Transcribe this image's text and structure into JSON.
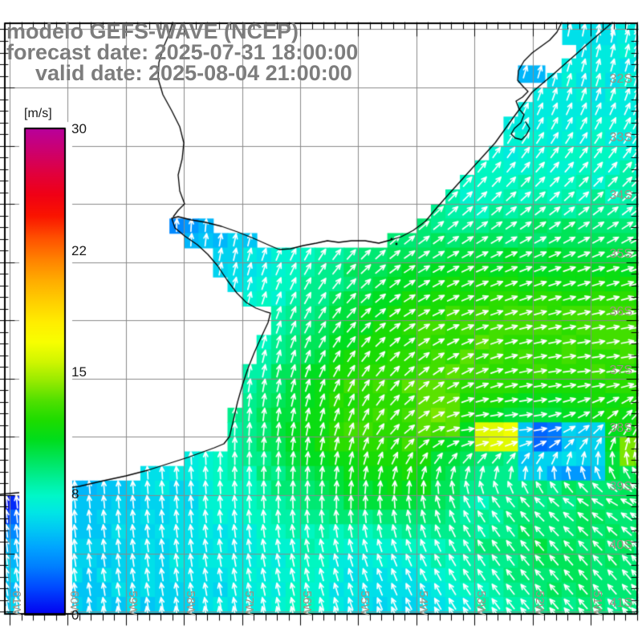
{
  "header": {
    "model_title": "modelo GEFS-WAVE (NCEP)",
    "forecast_date_line": "forecast date: 2025-07-31 18:00:00",
    "valid_date_line": "valid date: 2025-08-04 21:00:00",
    "title_color": "#7d7d7d"
  },
  "colorbar": {
    "unit_label": "[m/s]",
    "ticks": [
      {
        "value": 30,
        "label": "30"
      },
      {
        "value": 22,
        "label": "22"
      },
      {
        "value": 15,
        "label": "15"
      },
      {
        "value": 8,
        "label": "8"
      },
      {
        "value": 0,
        "label": "0"
      }
    ],
    "colormap": [
      [
        0.0,
        "#b8009c"
      ],
      [
        0.045,
        "#cc0070"
      ],
      [
        0.09,
        "#e00040"
      ],
      [
        0.135,
        "#f00016"
      ],
      [
        0.18,
        "#fa1400"
      ],
      [
        0.225,
        "#ff5000"
      ],
      [
        0.27,
        "#ff8200"
      ],
      [
        0.315,
        "#ffae00"
      ],
      [
        0.36,
        "#ffd200"
      ],
      [
        0.4,
        "#ffee00"
      ],
      [
        0.44,
        "#f8ff00"
      ],
      [
        0.48,
        "#d0f600"
      ],
      [
        0.52,
        "#96ea00"
      ],
      [
        0.56,
        "#50e000"
      ],
      [
        0.6,
        "#1edc00"
      ],
      [
        0.64,
        "#00dd1c"
      ],
      [
        0.68,
        "#00e55a"
      ],
      [
        0.72,
        "#00ef96"
      ],
      [
        0.755,
        "#00f8c8"
      ],
      [
        0.79,
        "#00e6e6"
      ],
      [
        0.825,
        "#00c8f4"
      ],
      [
        0.86,
        "#00a6ff"
      ],
      [
        0.9,
        "#0080ff"
      ],
      [
        0.945,
        "#0048ff"
      ],
      [
        1.0,
        "#0400f0"
      ]
    ]
  },
  "axes": {
    "label_color": "#9c9183",
    "grid_color": "#8a8a8a",
    "lat_labels": [
      {
        "lat": -32,
        "text": "32S"
      },
      {
        "lat": -33,
        "text": "33S"
      },
      {
        "lat": -34,
        "text": "34S"
      },
      {
        "lat": -35,
        "text": "35S"
      },
      {
        "lat": -36,
        "text": "36S"
      },
      {
        "lat": -37,
        "text": "37S"
      },
      {
        "lat": -38,
        "text": "38S"
      },
      {
        "lat": -39,
        "text": "39S"
      },
      {
        "lat": -40,
        "text": "40S"
      },
      {
        "lat": -41,
        "text": "41S"
      }
    ],
    "lon_labels": [
      {
        "lon": -61,
        "text": "61W"
      },
      {
        "lon": -60,
        "text": "60W"
      },
      {
        "lon": -59,
        "text": "59W"
      },
      {
        "lon": -58,
        "text": "58W"
      },
      {
        "lon": -57,
        "text": "57W"
      },
      {
        "lon": -56,
        "text": "56W"
      },
      {
        "lon": -55,
        "text": "55W"
      },
      {
        "lon": -54,
        "text": "54W"
      },
      {
        "lon": -53,
        "text": "53W"
      },
      {
        "lon": -52,
        "text": "52W"
      },
      {
        "lon": -51,
        "text": "51W"
      }
    ]
  },
  "chart_data": {
    "type": "heatmap",
    "title": "modelo GEFS-WAVE (NCEP)",
    "field_description": "wind/wave speed [m/s] shaded cells with white direction arrows",
    "lon_range": [
      -61.1,
      -50.18
    ],
    "lat_range": [
      -41.05,
      -30.88
    ],
    "value_range": [
      0,
      30
    ],
    "grid_lons": [
      -61,
      -60,
      -59,
      -58,
      -57,
      -56,
      -55,
      -54,
      -53,
      -52,
      -51,
      -50
    ],
    "grid_lats": [
      -31,
      -32,
      -33,
      -34,
      -35,
      -36,
      -37,
      -38,
      -39,
      -40,
      -41
    ],
    "speed_grid": [
      [
        0,
        0,
        0,
        0,
        0,
        0,
        0,
        6.5,
        6.5,
        6.5,
        7,
        7
      ],
      [
        0,
        0,
        0,
        0,
        0,
        0,
        6.5,
        7,
        7,
        7,
        7,
        7
      ],
      [
        0,
        0,
        0,
        0,
        4.5,
        5,
        6.5,
        7.5,
        7.5,
        7.5,
        7.5,
        7.5
      ],
      [
        0,
        0,
        0,
        4.5,
        5,
        6.5,
        7.5,
        8,
        8,
        8.5,
        8.5,
        8.5
      ],
      [
        0,
        0,
        4,
        5,
        6.5,
        8,
        9.5,
        10.5,
        11,
        11,
        11,
        11
      ],
      [
        0,
        0,
        0,
        6.5,
        7.5,
        9,
        11,
        12.5,
        13,
        13,
        13,
        13
      ],
      [
        0,
        0,
        0,
        7,
        8.5,
        10.5,
        12.5,
        13,
        13,
        12.5,
        12.5,
        12.5
      ],
      [
        0,
        0,
        6,
        7,
        9,
        11.5,
        13,
        12.5,
        10.5,
        9,
        10.5,
        12
      ],
      [
        0,
        5.5,
        6,
        6.5,
        8,
        9.5,
        10.5,
        11,
        8.5,
        9,
        9.5,
        10
      ],
      [
        5.5,
        6,
        6,
        6.5,
        7,
        8,
        7,
        7.5,
        9,
        10,
        10,
        9.5
      ],
      [
        5.5,
        5.5,
        6,
        6,
        6.5,
        8,
        6.5,
        6,
        7.5,
        9,
        9.5,
        9
      ]
    ],
    "dir_grid": [
      [
        0,
        0,
        0,
        0,
        0,
        0,
        5,
        10,
        12,
        12,
        12,
        12
      ],
      [
        0,
        0,
        0,
        0,
        0,
        5,
        10,
        15,
        18,
        18,
        18,
        18
      ],
      [
        0,
        0,
        0,
        0,
        5,
        10,
        20,
        30,
        33,
        35,
        35,
        35
      ],
      [
        0,
        0,
        0,
        0,
        10,
        20,
        33,
        44,
        48,
        50,
        50,
        50
      ],
      [
        0,
        0,
        0,
        5,
        15,
        28,
        45,
        58,
        65,
        68,
        70,
        70
      ],
      [
        0,
        0,
        0,
        5,
        12,
        25,
        45,
        60,
        70,
        75,
        78,
        78
      ],
      [
        0,
        0,
        0,
        0,
        8,
        18,
        32,
        48,
        65,
        80,
        85,
        80
      ],
      [
        -5,
        -5,
        0,
        -3,
        2,
        8,
        20,
        55,
        88,
        85,
        45,
        15
      ],
      [
        -5,
        -5,
        -5,
        -5,
        -3,
        0,
        3,
        -5,
        -30,
        -45,
        -60,
        -65
      ],
      [
        -8,
        -8,
        -8,
        -8,
        -10,
        -12,
        -18,
        -25,
        -32,
        -40,
        -42,
        -40
      ],
      [
        -10,
        -10,
        -10,
        -10,
        -12,
        -15,
        -20,
        -28,
        -35,
        -40,
        -42,
        -40
      ]
    ],
    "patches": [
      {
        "lon0": -52.25,
        "lat0": -37.74,
        "lon1": -50.74,
        "lat1": -38.78,
        "v": 6
      },
      {
        "lon0": -53.96,
        "lat0": -37.04,
        "lon1": -53.32,
        "lat1": -37.94,
        "v": 13.5
      },
      {
        "lon0": -52.88,
        "lat0": -37.87,
        "lon1": -52.21,
        "lat1": -38.16,
        "v": 16
      },
      {
        "lon0": -50.53,
        "lat0": -38.12,
        "lon1": -50.18,
        "lat1": -38.42,
        "v": 14
      },
      {
        "lon0": -51.88,
        "lat0": -37.87,
        "lon1": -51.39,
        "lat1": -38.16,
        "v": 2.8
      },
      {
        "lon0": -51.66,
        "lat0": -38.39,
        "lon1": -51.08,
        "lat1": -38.69,
        "v": 4.2
      },
      {
        "lon0": -58.43,
        "lat0": -34.05,
        "lon1": -57.82,
        "lat1": -34.52,
        "v": 4
      }
    ],
    "extra_cells": [
      {
        "lon0": -51.49,
        "lat0": -30.9,
        "lon1": -50.55,
        "lat1": -31.27,
        "v": 6.5
      },
      {
        "lon0": -52.25,
        "lat0": -31.62,
        "lon1": -51.78,
        "lat1": -31.92,
        "v": 5
      }
    ]
  },
  "geo": {
    "land_outline": [
      [
        763,
        28
      ],
      [
        740,
        48
      ],
      [
        715,
        70
      ],
      [
        690,
        92
      ],
      [
        663,
        115
      ],
      [
        640,
        146
      ],
      [
        617,
        178
      ],
      [
        588,
        210
      ],
      [
        560,
        241
      ],
      [
        545,
        258
      ],
      [
        530,
        276
      ],
      [
        515,
        287
      ],
      [
        500,
        295
      ],
      [
        487,
        299
      ],
      [
        472,
        303
      ],
      [
        455,
        300
      ],
      [
        438,
        300
      ],
      [
        422,
        302
      ],
      [
        408,
        300
      ],
      [
        394,
        303
      ],
      [
        378,
        306
      ],
      [
        362,
        310
      ],
      [
        348,
        311
      ],
      [
        334,
        305
      ],
      [
        316,
        297
      ],
      [
        296,
        289
      ],
      [
        276,
        282
      ],
      [
        256,
        277
      ],
      [
        238,
        274
      ],
      [
        222,
        270
      ],
      [
        214,
        272
      ],
      [
        218,
        284
      ],
      [
        230,
        294
      ],
      [
        246,
        305
      ],
      [
        259,
        317
      ],
      [
        271,
        331
      ],
      [
        283,
        349
      ],
      [
        295,
        365
      ],
      [
        307,
        377
      ],
      [
        319,
        384
      ],
      [
        330,
        388
      ],
      [
        337,
        390
      ],
      [
        334,
        402
      ],
      [
        326,
        419
      ],
      [
        317,
        439
      ],
      [
        309,
        459
      ],
      [
        302,
        480
      ],
      [
        296,
        501
      ],
      [
        291,
        523
      ],
      [
        286,
        544
      ],
      [
        279,
        553
      ],
      [
        267,
        558
      ],
      [
        256,
        562
      ],
      [
        234,
        570
      ],
      [
        209,
        578
      ],
      [
        184,
        586
      ],
      [
        157,
        593
      ],
      [
        129,
        599
      ],
      [
        99,
        606
      ],
      [
        69,
        610
      ],
      [
        34,
        613
      ],
      [
        0,
        616
      ],
      [
        0,
        28
      ]
    ],
    "river": [
      [
        215,
        28
      ],
      [
        211,
        42
      ],
      [
        204,
        58
      ],
      [
        198,
        78
      ],
      [
        197,
        98
      ],
      [
        203,
        118
      ],
      [
        214,
        138
      ],
      [
        224,
        158
      ],
      [
        229,
        178
      ],
      [
        227,
        198
      ],
      [
        222,
        218
      ],
      [
        224,
        238
      ],
      [
        230,
        254
      ],
      [
        222,
        262
      ],
      [
        216,
        270
      ]
    ],
    "lagoon": [
      [
        700,
        28
      ],
      [
        694,
        40
      ],
      [
        685,
        50
      ],
      [
        674,
        58
      ],
      [
        663,
        66
      ],
      [
        653,
        76
      ],
      [
        646,
        88
      ],
      [
        645,
        100
      ],
      [
        652,
        108
      ],
      [
        658,
        114
      ],
      [
        651,
        121
      ],
      [
        643,
        126
      ],
      [
        647,
        136
      ],
      [
        653,
        143
      ],
      [
        649,
        153
      ],
      [
        641,
        160
      ],
      [
        637,
        167
      ],
      [
        642,
        172
      ],
      [
        650,
        174
      ],
      [
        656,
        168
      ],
      [
        660,
        160
      ],
      [
        655,
        152
      ]
    ],
    "island_dots": [
      [
        488,
        298
      ],
      [
        494,
        304
      ]
    ]
  },
  "style": {
    "arrow_color": "#ffffff",
    "coast_color": "#000000",
    "frame_color": "#000000",
    "sea_fallback": "#00ccf0"
  }
}
